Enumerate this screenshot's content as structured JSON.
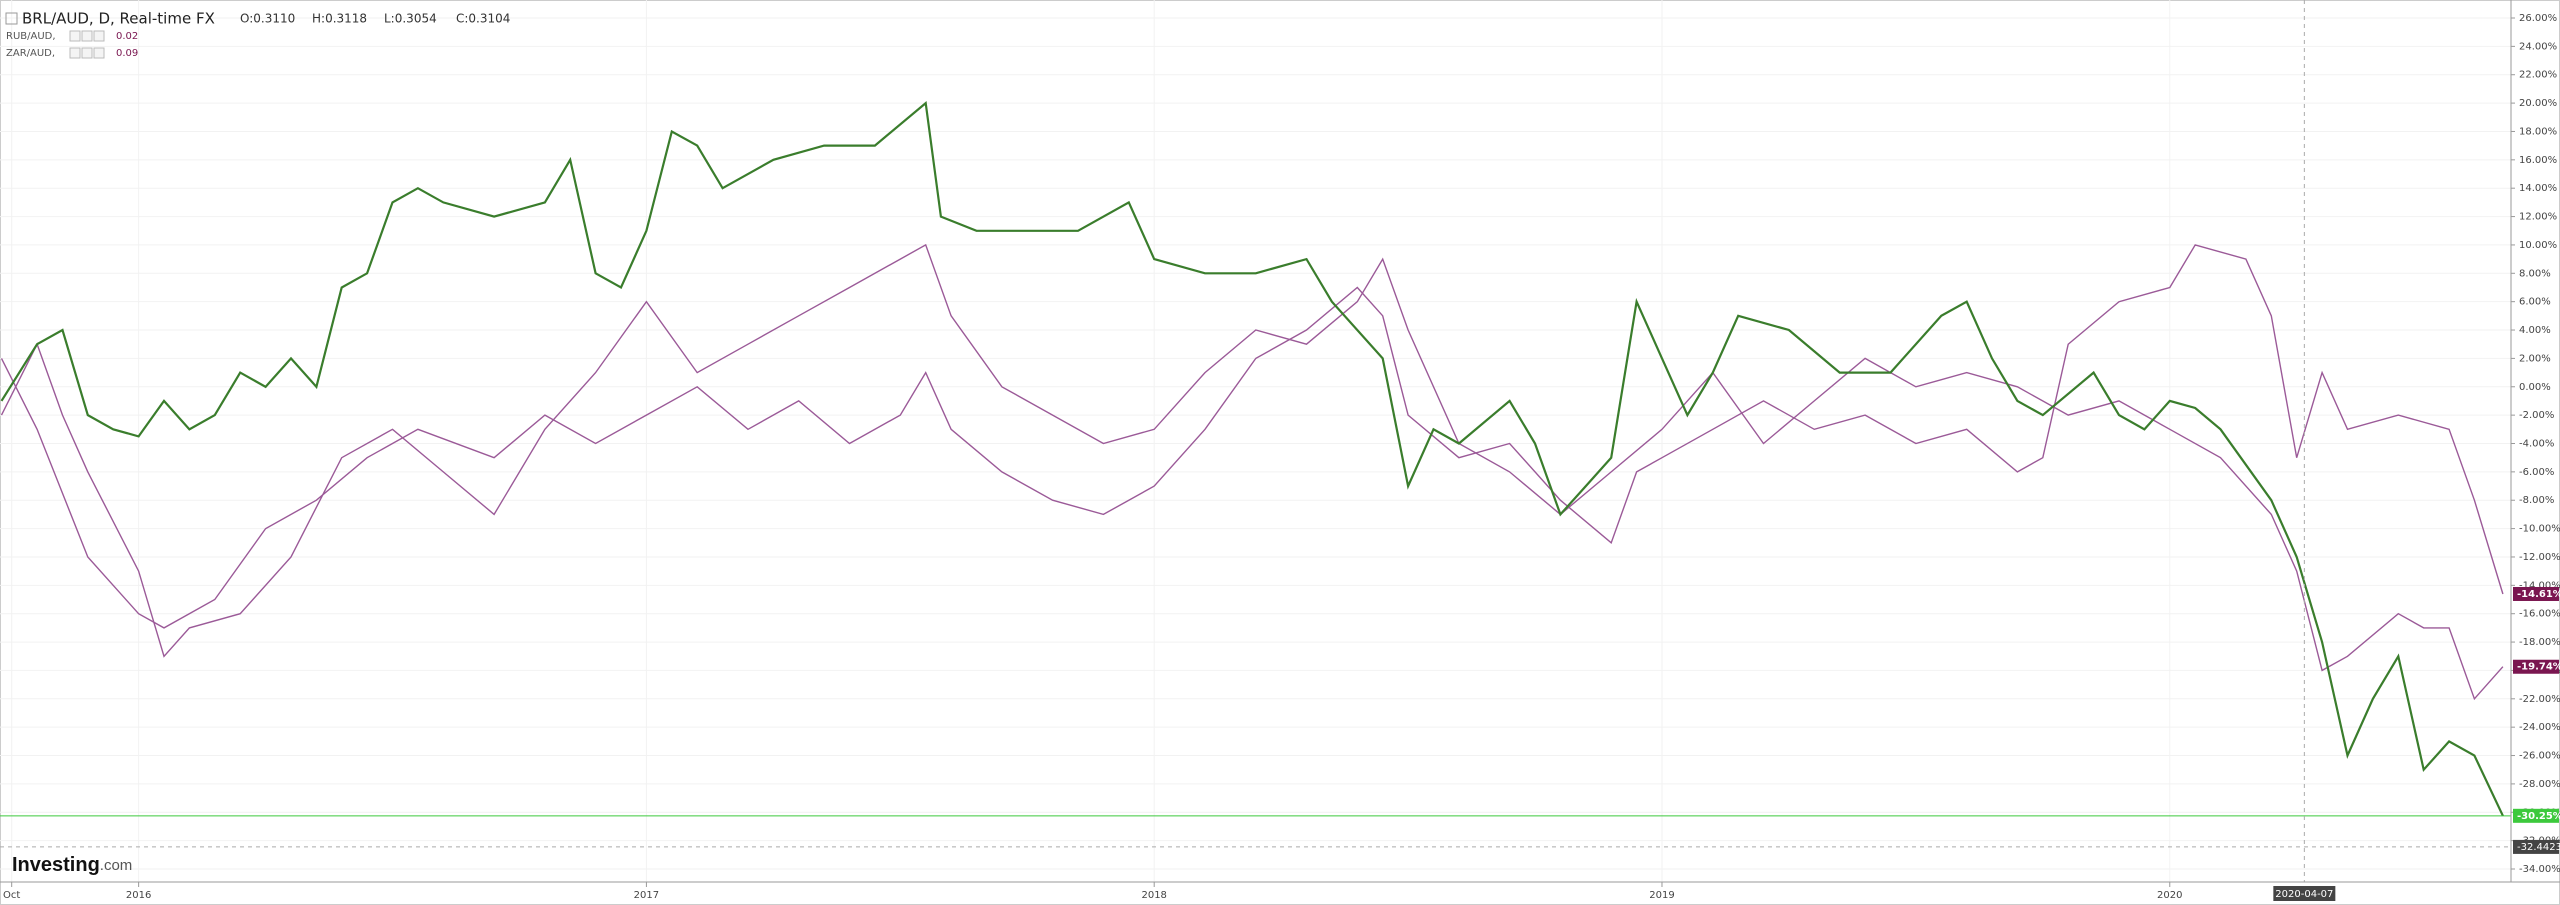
{
  "chart_data": {
    "type": "line",
    "legend_title": "BRL/AUD, D, Real-time FX",
    "ohlc": [
      "O:0.3110",
      "H:0.3118",
      "L:0.3054",
      "C:0.3104"
    ],
    "logo": {
      "name": "Investing",
      "suffix": ".com"
    },
    "grid": true,
    "xlim": [
      2015.727,
      2020.672
    ],
    "xticks": [
      {
        "value": 2015.75,
        "label": "Oct"
      },
      2016,
      2017,
      2018,
      2019,
      2020
    ],
    "ylim": [
      26.2,
      -34.3
    ],
    "yticks": [
      {
        "value": 26,
        "label": "26.00%"
      },
      {
        "value": 24,
        "label": "24.00%"
      },
      {
        "value": 22,
        "label": "22.00%"
      },
      {
        "value": 20,
        "label": "20.00%"
      },
      {
        "value": 18,
        "label": "18.00%"
      },
      {
        "value": 16,
        "label": "16.00%"
      },
      {
        "value": 14,
        "label": "14.00%"
      },
      {
        "value": 12,
        "label": "12.00%"
      },
      {
        "value": 10,
        "label": "10.00%"
      },
      {
        "value": 8,
        "label": "8.00%"
      },
      {
        "value": 6,
        "label": "6.00%"
      },
      {
        "value": 4,
        "label": "4.00%"
      },
      {
        "value": 2,
        "label": "2.00%"
      },
      {
        "value": 0,
        "label": "0.00%"
      },
      {
        "value": -2,
        "label": "-2.00%"
      },
      {
        "value": -4,
        "label": "-4.00%"
      },
      {
        "value": -6,
        "label": "-6.00%"
      },
      {
        "value": -8,
        "label": "-8.00%"
      },
      {
        "value": -10,
        "label": "-10.00%"
      },
      {
        "value": -12,
        "label": "-12.00%"
      },
      {
        "value": -14,
        "label": "-14.00%"
      },
      {
        "value": -16,
        "label": "-16.00%"
      },
      {
        "value": -18,
        "label": "-18.00%"
      },
      {
        "value": -20,
        "label": "-20.00%"
      },
      {
        "value": -22,
        "label": "-22.00%"
      },
      {
        "value": -24,
        "label": "-24.00%"
      },
      {
        "value": -26,
        "label": "-26.00%"
      },
      {
        "value": -28,
        "label": "-28.00%"
      },
      {
        "value": -30,
        "label": "-30.00%"
      },
      {
        "value": -32,
        "label": "-32.00%"
      },
      {
        "value": -34,
        "label": "-34.00%"
      }
    ],
    "crosshair": {
      "x_label": "2020-04-07",
      "y": -32.4423
    },
    "series": [
      {
        "name": "BRL/AUD",
        "color": "#3a7d2c",
        "tag_color": "#3cc93c",
        "last_label": "-30.25%",
        "x": [
          2015.73,
          2015.8,
          2015.85,
          2015.9,
          2015.95,
          2016.0,
          2016.05,
          2016.1,
          2016.15,
          2016.2,
          2016.25,
          2016.3,
          2016.35,
          2016.4,
          2016.45,
          2016.5,
          2016.55,
          2016.6,
          2016.7,
          2016.8,
          2016.85,
          2016.9,
          2016.95,
          2017.0,
          2017.05,
          2017.1,
          2017.15,
          2017.25,
          2017.35,
          2017.45,
          2017.55,
          2017.58,
          2017.65,
          2017.75,
          2017.85,
          2017.95,
          2018.0,
          2018.1,
          2018.2,
          2018.3,
          2018.35,
          2018.45,
          2018.5,
          2018.55,
          2018.6,
          2018.7,
          2018.75,
          2018.8,
          2018.85,
          2018.9,
          2018.95,
          2019.0,
          2019.05,
          2019.1,
          2019.15,
          2019.25,
          2019.35,
          2019.45,
          2019.55,
          2019.6,
          2019.65,
          2019.7,
          2019.75,
          2019.85,
          2019.9,
          2019.95,
          2020.0,
          2020.05,
          2020.1,
          2020.2,
          2020.25,
          2020.3,
          2020.35,
          2020.4,
          2020.45,
          2020.5,
          2020.55,
          2020.6,
          2020.656
        ],
        "values": [
          -1,
          3,
          4,
          -2,
          -3,
          -3.5,
          -1,
          -3,
          -2,
          1,
          0,
          2,
          0,
          7,
          8,
          13,
          14,
          13,
          12,
          13,
          16,
          8,
          7,
          11,
          18,
          17,
          14,
          16,
          17,
          17,
          20,
          12,
          11,
          11,
          11,
          13,
          9,
          8,
          8,
          9,
          6,
          2,
          -7,
          -3,
          -4,
          -1,
          -4,
          -9,
          -7,
          -5,
          6,
          2,
          -2,
          1,
          5,
          4,
          1,
          1,
          5,
          6,
          2,
          -1,
          -2,
          1,
          -2,
          -3,
          -1,
          -1.5,
          -3,
          -8,
          -12,
          -18,
          -26,
          -22,
          -19,
          -27,
          -25,
          -26,
          -30.25
        ]
      },
      {
        "name": "RUB/AUD,",
        "legend_value": "0.02",
        "color": "#9b5a98",
        "tag_color": "#7a1650",
        "last_label": "-14.61%",
        "x": [
          2015.73,
          2015.8,
          2015.9,
          2016.0,
          2016.05,
          2016.15,
          2016.25,
          2016.35,
          2016.45,
          2016.55,
          2016.7,
          2016.8,
          2016.9,
          2017.0,
          2017.1,
          2017.2,
          2017.3,
          2017.4,
          2017.5,
          2017.55,
          2017.6,
          2017.7,
          2017.8,
          2017.9,
          2018.0,
          2018.1,
          2018.2,
          2018.3,
          2018.4,
          2018.45,
          2018.5,
          2018.6,
          2018.7,
          2018.8,
          2018.9,
          2018.95,
          2019.0,
          2019.1,
          2019.2,
          2019.3,
          2019.4,
          2019.5,
          2019.6,
          2019.7,
          2019.75,
          2019.8,
          2019.9,
          2020.0,
          2020.05,
          2020.15,
          2020.2,
          2020.25,
          2020.3,
          2020.35,
          2020.45,
          2020.55,
          2020.6,
          2020.656
        ],
        "values": [
          2,
          -3,
          -12,
          -16,
          -17,
          -15,
          -10,
          -8,
          -5,
          -3,
          -5,
          -2,
          -4,
          -2,
          0,
          -3,
          -1,
          -4,
          -2,
          1,
          -3,
          -6,
          -8,
          -9,
          -7,
          -3,
          2,
          4,
          7,
          5,
          -2,
          -5,
          -4,
          -8,
          -11,
          -6,
          -5,
          -3,
          -1,
          -3,
          -2,
          -4,
          -3,
          -6,
          -5,
          3,
          6,
          7,
          10,
          9,
          5,
          -5,
          1,
          -3,
          -2,
          -3,
          -8,
          -14.61
        ]
      },
      {
        "name": "ZAR/AUD,",
        "legend_value": "0.09",
        "color": "#9b5a98",
        "tag_color": "#7a1650",
        "last_label": "-19.74%",
        "x": [
          2015.73,
          2015.8,
          2015.85,
          2015.9,
          2016.0,
          2016.05,
          2016.1,
          2016.2,
          2016.3,
          2016.4,
          2016.5,
          2016.6,
          2016.7,
          2016.8,
          2016.9,
          2017.0,
          2017.1,
          2017.2,
          2017.3,
          2017.4,
          2017.5,
          2017.55,
          2017.6,
          2017.7,
          2017.8,
          2017.9,
          2018.0,
          2018.1,
          2018.2,
          2018.3,
          2018.4,
          2018.45,
          2018.5,
          2018.6,
          2018.7,
          2018.8,
          2018.9,
          2019.0,
          2019.1,
          2019.2,
          2019.3,
          2019.4,
          2019.5,
          2019.6,
          2019.7,
          2019.8,
          2019.9,
          2020.0,
          2020.1,
          2020.2,
          2020.25,
          2020.3,
          2020.35,
          2020.45,
          2020.5,
          2020.55,
          2020.6,
          2020.656
        ],
        "values": [
          -2,
          3,
          -2,
          -6,
          -13,
          -19,
          -17,
          -16,
          -12,
          -5,
          -3,
          -6,
          -9,
          -3,
          1,
          6,
          1,
          3,
          5,
          7,
          9,
          10,
          5,
          0,
          -2,
          -4,
          -3,
          1,
          4,
          3,
          6,
          9,
          4,
          -4,
          -6,
          -9,
          -6,
          -3,
          1,
          -4,
          -1,
          2,
          0,
          1,
          0,
          -2,
          -1,
          -3,
          -5,
          -9,
          -13,
          -20,
          -19,
          -16,
          -17,
          -17,
          -22,
          -19.74
        ]
      }
    ]
  }
}
